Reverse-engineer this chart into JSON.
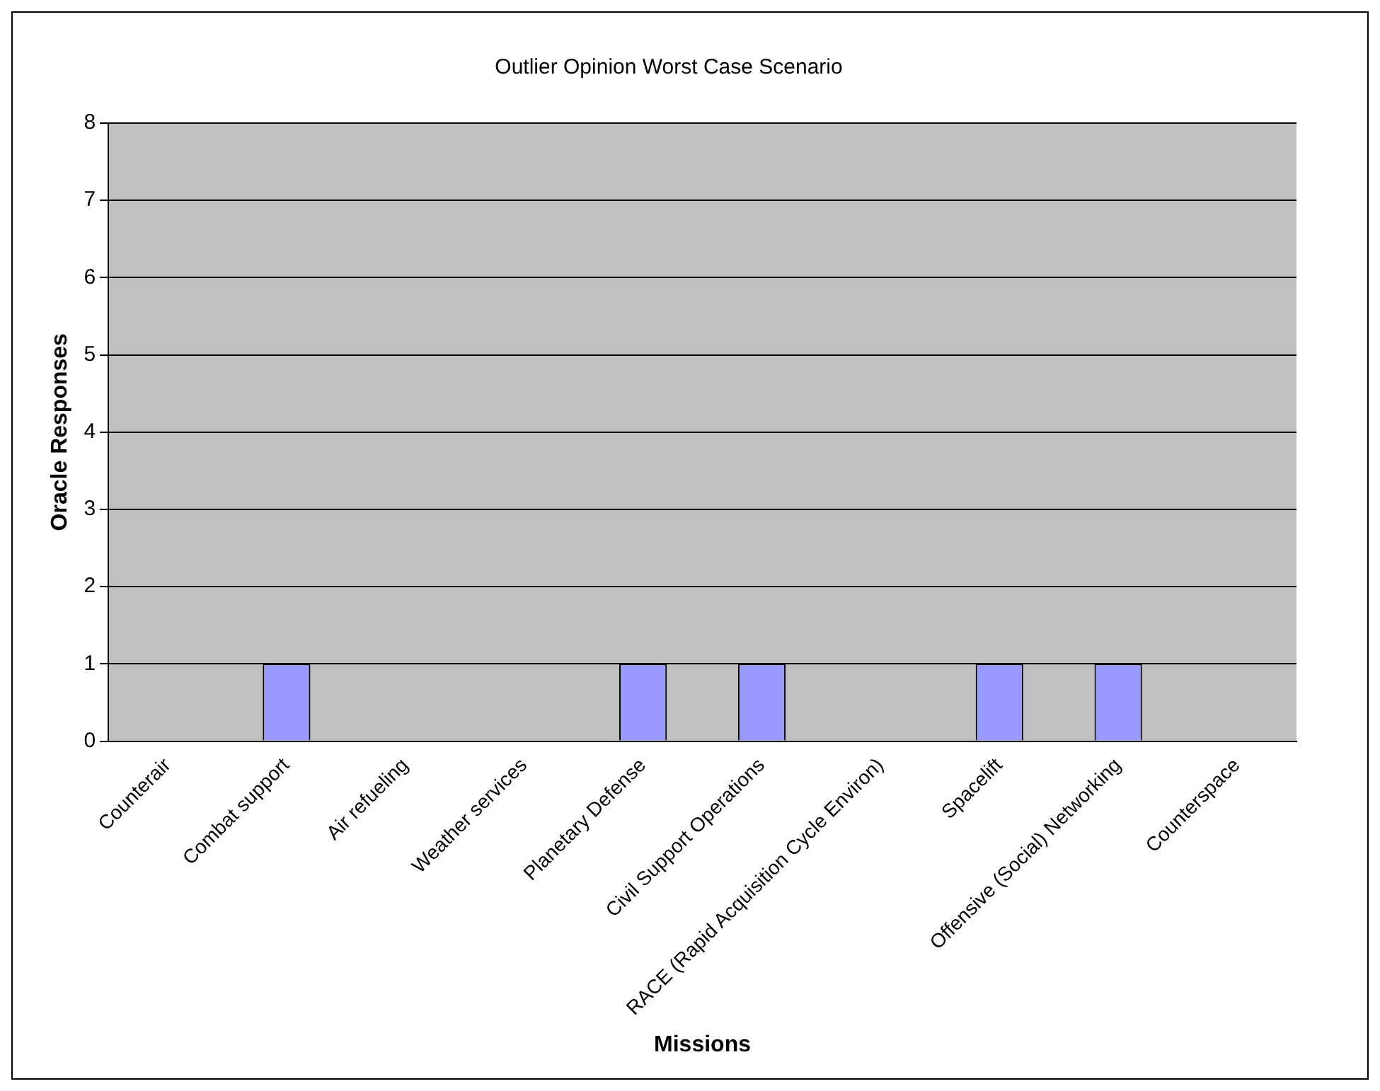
{
  "chart_data": {
    "type": "bar",
    "title": "Outlier Opinion Worst Case Scenario",
    "xlabel": "Missions",
    "ylabel": "Oracle Responses",
    "categories": [
      "Counterair",
      "Combat support",
      "Air refueling",
      "Weather services",
      "Planetary Defense",
      "Civil Support Operations",
      "RACE (Rapid Acquisition Cycle Environ)",
      "Spacelift",
      "Offensive (Social) Networking",
      "Counterspace"
    ],
    "values": [
      0,
      1,
      0,
      0,
      1,
      1,
      0,
      1,
      1,
      0
    ],
    "color": "#9999ff",
    "ylim": [
      0,
      8
    ],
    "yticks": [
      0,
      1,
      2,
      3,
      4,
      5,
      6,
      7,
      8
    ],
    "grid": "y",
    "legend": false
  }
}
